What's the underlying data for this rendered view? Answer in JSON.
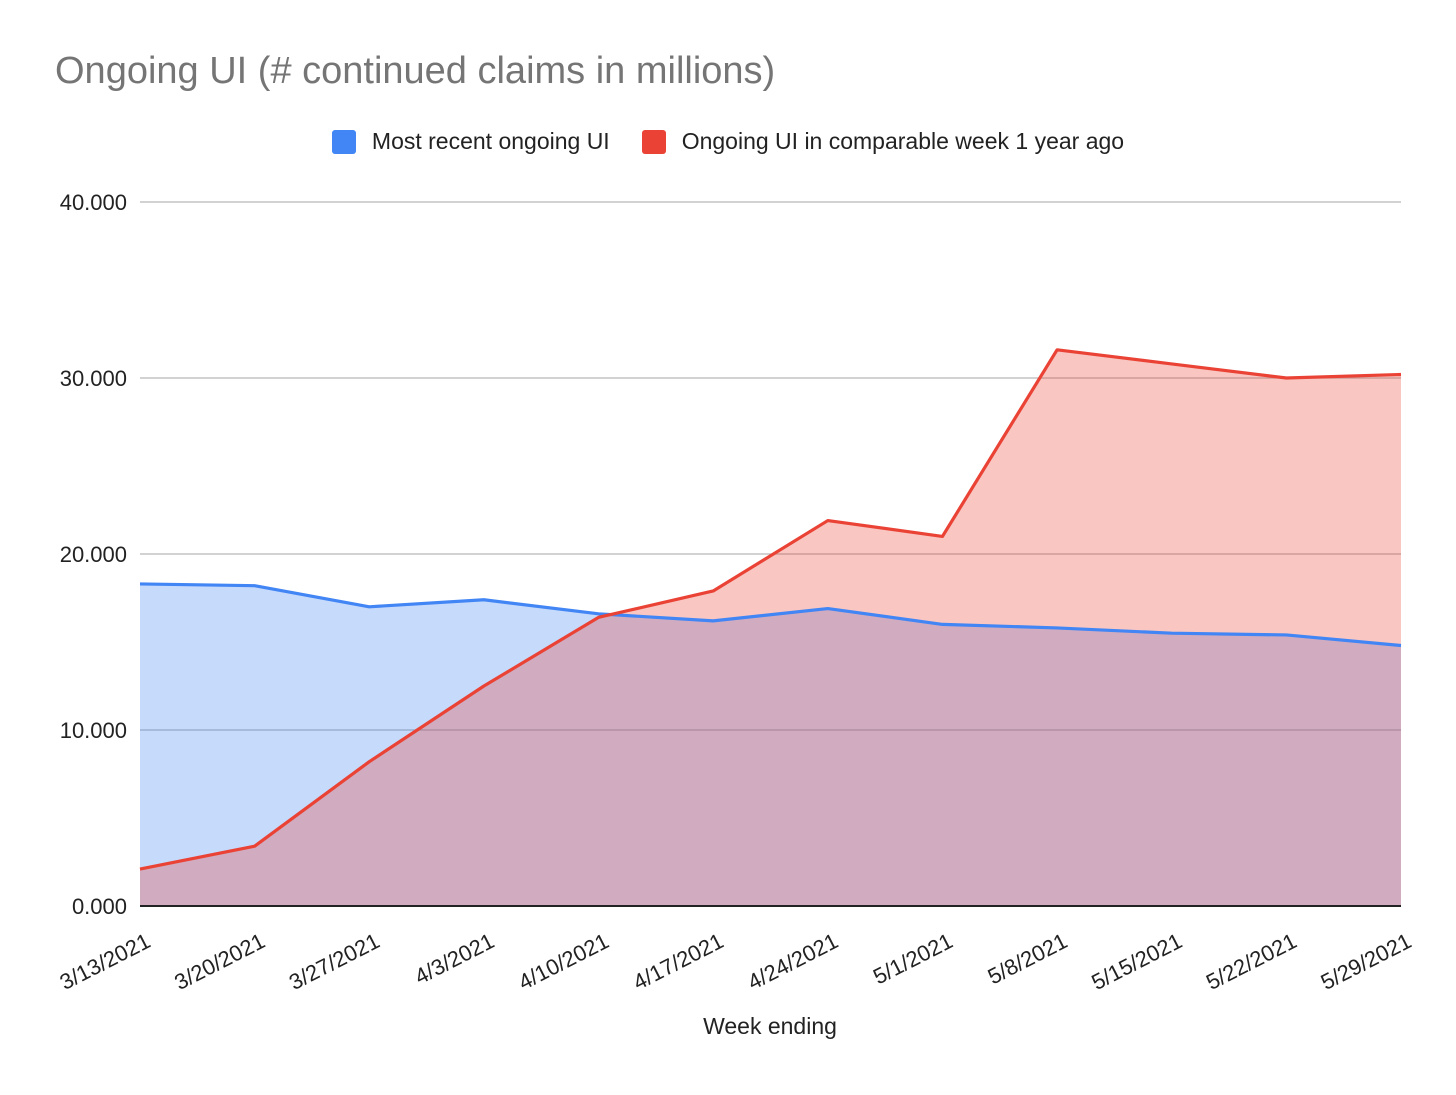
{
  "chart_data": {
    "type": "area",
    "title": "Ongoing UI (# continued claims in millions)",
    "xlabel": "Week ending",
    "ylabel": "",
    "ylim": [
      0,
      40
    ],
    "yticks": [
      "0.000",
      "10.000",
      "20.000",
      "30.000",
      "40.000"
    ],
    "categories": [
      "3/13/2021",
      "3/20/2021",
      "3/27/2021",
      "4/3/2021",
      "4/10/2021",
      "4/17/2021",
      "4/24/2021",
      "5/1/2021",
      "5/8/2021",
      "5/15/2021",
      "5/22/2021",
      "5/29/2021"
    ],
    "series": [
      {
        "name": "Most recent ongoing UI",
        "color": "#4285f4",
        "fill": "#c6d9f8",
        "values": [
          18.3,
          18.2,
          17.0,
          17.4,
          16.6,
          16.2,
          16.9,
          16.0,
          15.8,
          15.5,
          15.4,
          14.8
        ]
      },
      {
        "name": "Ongoing UI in comparable week 1 year ago",
        "color": "#ea4335",
        "fill": "#f9c5c1",
        "values": [
          2.1,
          3.4,
          8.2,
          12.5,
          16.4,
          17.9,
          21.9,
          21.0,
          31.6,
          30.8,
          30.0,
          30.2
        ]
      }
    ],
    "legend_position": "top-center",
    "grid": true
  }
}
